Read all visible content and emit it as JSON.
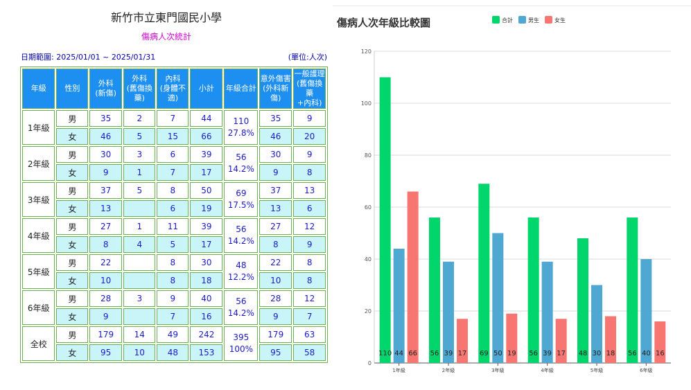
{
  "table": {
    "school_name": "新竹市立東門國民小學",
    "subtitle": "傷病人次統計",
    "date_range": "日期範圍: 2025/01/01 ~ 2025/01/31",
    "unit": "(單位:人次)",
    "headers": [
      {
        "l1": "年級",
        "l2": "",
        "l3": ""
      },
      {
        "l1": "性別",
        "l2": "",
        "l3": ""
      },
      {
        "l1": "外科",
        "l2": "(新傷)",
        "l3": ""
      },
      {
        "l1": "外科",
        "l2": "(舊傷換藥)",
        "l3": ""
      },
      {
        "l1": "內科",
        "l2": "(身體不適)",
        "l3": ""
      },
      {
        "l1": "小計",
        "l2": "",
        "l3": ""
      },
      {
        "l1": "年級合計",
        "l2": "",
        "l3": ""
      },
      {
        "l1": "意外傷害",
        "l2": "(外科新傷)",
        "l3": ""
      },
      {
        "l1": "一般護理",
        "l2": "(舊傷換藥",
        "l3": "+內科)"
      }
    ],
    "groups": [
      {
        "grade": "1年級",
        "total": "110",
        "pct": "27.8%",
        "rows": [
          {
            "sex": "男",
            "cells": [
              "35",
              "2",
              "7",
              "44",
              "35",
              "9"
            ]
          },
          {
            "sex": "女",
            "cells": [
              "46",
              "5",
              "15",
              "66",
              "46",
              "20"
            ]
          }
        ]
      },
      {
        "grade": "2年級",
        "total": "56",
        "pct": "14.2%",
        "rows": [
          {
            "sex": "男",
            "cells": [
              "30",
              "3",
              "6",
              "39",
              "30",
              "9"
            ]
          },
          {
            "sex": "女",
            "cells": [
              "9",
              "1",
              "7",
              "17",
              "9",
              "8"
            ]
          }
        ]
      },
      {
        "grade": "3年級",
        "total": "69",
        "pct": "17.5%",
        "rows": [
          {
            "sex": "男",
            "cells": [
              "37",
              "5",
              "8",
              "50",
              "37",
              "13"
            ]
          },
          {
            "sex": "女",
            "cells": [
              "13",
              "",
              "6",
              "19",
              "13",
              "6"
            ]
          }
        ]
      },
      {
        "grade": "4年級",
        "total": "56",
        "pct": "14.2%",
        "rows": [
          {
            "sex": "男",
            "cells": [
              "27",
              "1",
              "11",
              "39",
              "27",
              "12"
            ]
          },
          {
            "sex": "女",
            "cells": [
              "8",
              "4",
              "5",
              "17",
              "8",
              "9"
            ]
          }
        ]
      },
      {
        "grade": "5年級",
        "total": "48",
        "pct": "12.2%",
        "rows": [
          {
            "sex": "男",
            "cells": [
              "22",
              "",
              "8",
              "30",
              "22",
              "8"
            ]
          },
          {
            "sex": "女",
            "cells": [
              "10",
              "",
              "8",
              "18",
              "10",
              "8"
            ]
          }
        ]
      },
      {
        "grade": "6年級",
        "total": "56",
        "pct": "14.2%",
        "rows": [
          {
            "sex": "男",
            "cells": [
              "28",
              "3",
              "9",
              "40",
              "28",
              "12"
            ]
          },
          {
            "sex": "女",
            "cells": [
              "9",
              "",
              "7",
              "16",
              "9",
              "7"
            ]
          }
        ]
      },
      {
        "grade": "全校",
        "total": "395",
        "pct": "100%",
        "rows": [
          {
            "sex": "男",
            "cells": [
              "179",
              "14",
              "49",
              "242",
              "179",
              "63"
            ]
          },
          {
            "sex": "女",
            "cells": [
              "95",
              "10",
              "48",
              "153",
              "95",
              "58"
            ]
          }
        ]
      }
    ]
  },
  "chart_data": {
    "type": "bar",
    "title": "傷病人次年級比較圖",
    "categories": [
      "1年級",
      "2年級",
      "3年級",
      "4年級",
      "5年級",
      "6年級"
    ],
    "series": [
      {
        "name": "合計",
        "color": "#00d66b",
        "values": [
          110,
          56,
          69,
          56,
          48,
          56
        ]
      },
      {
        "name": "男生",
        "color": "#4ea8d2",
        "values": [
          44,
          39,
          50,
          39,
          30,
          40
        ]
      },
      {
        "name": "女生",
        "color": "#f87672",
        "values": [
          66,
          17,
          19,
          17,
          18,
          16
        ]
      }
    ],
    "ylim": [
      0,
      120
    ],
    "yticks": [
      0,
      20,
      40,
      60,
      80,
      100,
      120
    ],
    "grid": true,
    "legend": "top-center",
    "data_labels": true
  }
}
